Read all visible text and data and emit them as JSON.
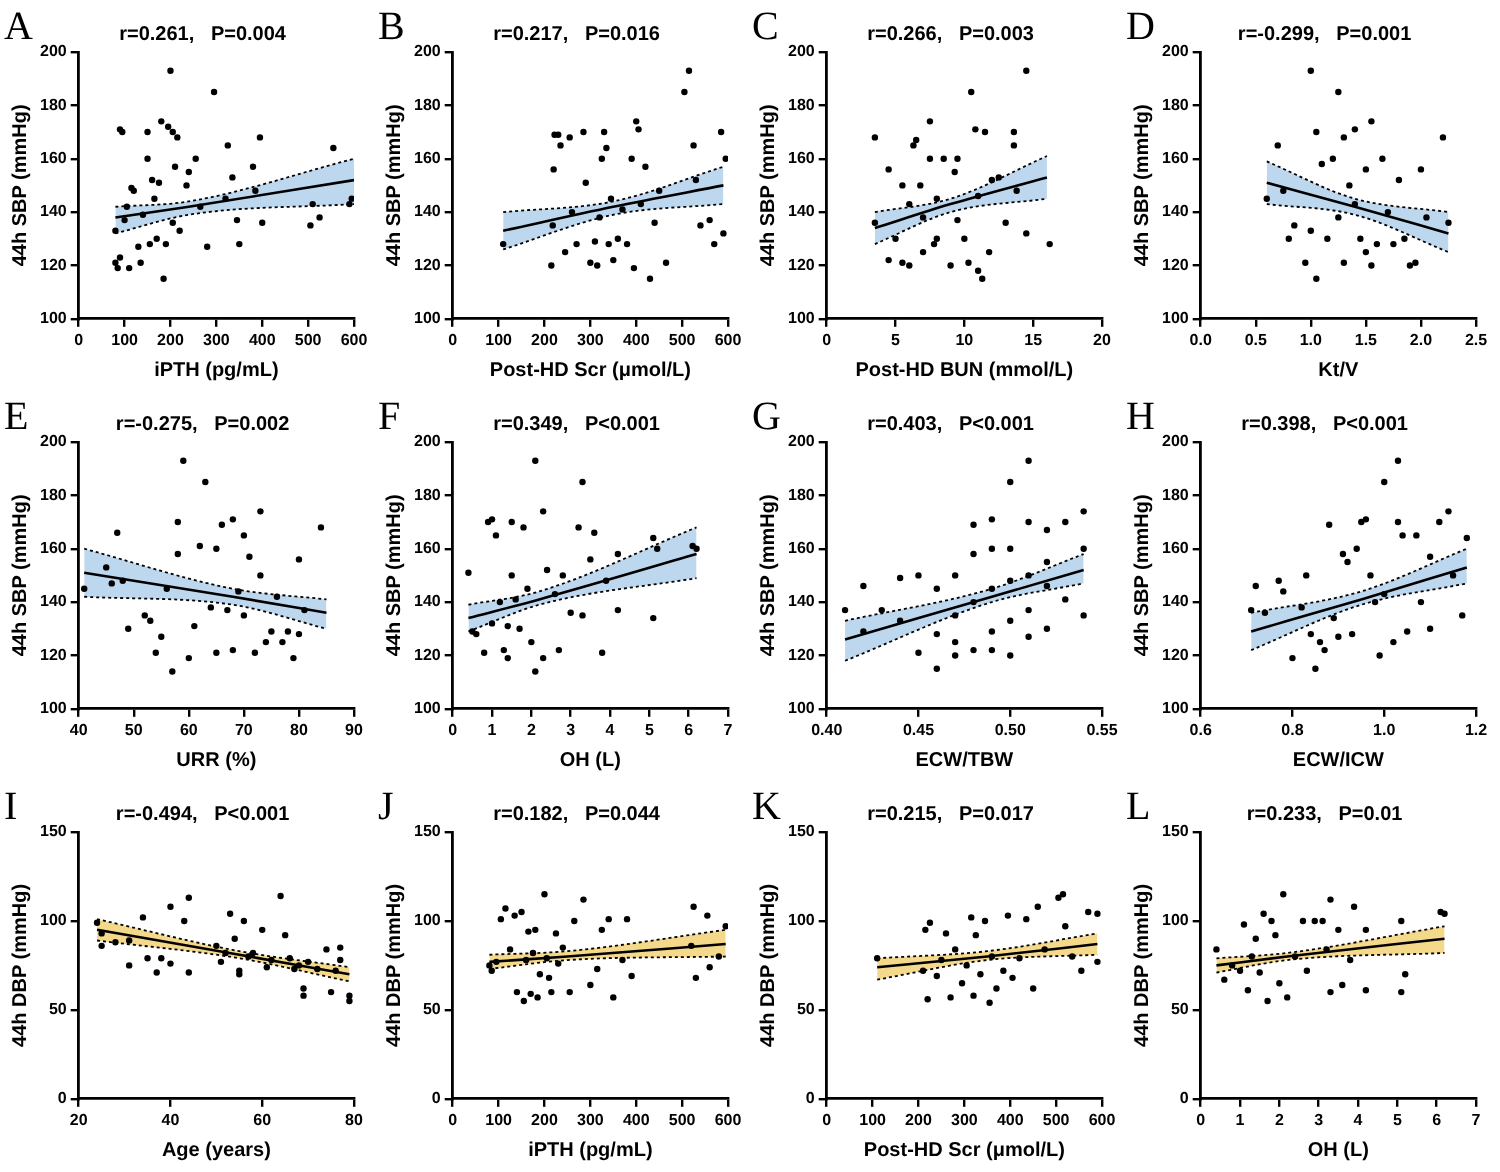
{
  "chart_data": [
    {
      "type": "scatter",
      "title": "A",
      "xlabel": "iPTH (pg/mL)",
      "ylabel": "44h SBP (mmHg)",
      "annotations": [
        "r=0.261,   P=0.004"
      ],
      "marker": "circle",
      "xlim": [
        0,
        600
      ],
      "xticks": [
        0,
        100,
        200,
        300,
        400,
        500,
        600
      ],
      "ylim": [
        100,
        200
      ],
      "yticks": [
        100,
        120,
        140,
        160,
        180,
        200
      ],
      "series": [
        {
          "type": "scatter",
          "color": "#000000",
          "x": [
            80,
            80,
            85,
            90,
            95,
            90,
            100,
            105,
            110,
            115,
            120,
            130,
            135,
            140,
            150,
            150,
            155,
            160,
            165,
            170,
            175,
            180,
            185,
            190,
            195,
            200,
            205,
            205,
            210,
            215,
            220,
            235,
            240,
            255,
            265,
            280,
            295,
            320,
            325,
            335,
            345,
            350,
            380,
            385,
            395,
            400,
            505,
            510,
            525,
            555,
            590,
            595
          ],
          "values": [
            133,
            121,
            119,
            171,
            170,
            123,
            137,
            142,
            119,
            149,
            148,
            127,
            121,
            139,
            160,
            170,
            128,
            152,
            145,
            130,
            151,
            174,
            115,
            128,
            172,
            193,
            170,
            136,
            157,
            168,
            133,
            150,
            155,
            160,
            142,
            127,
            185,
            145,
            165,
            153,
            137,
            128,
            157,
            148,
            168,
            136,
            135,
            143,
            138,
            164,
            143,
            145
          ]
        },
        {
          "type": "line",
          "color": "#000000",
          "colors": [
            "#bdd7ee",
            "#bdd7ee",
            "#bdd7ee"
          ],
          "x": [
            80,
            240,
            600
          ],
          "values": [
            138,
            142,
            152
          ],
          "lower": [
            132,
            139,
            143
          ],
          "upper": [
            142,
            144,
            160
          ],
          "marker": "none"
        },
        {
          "type": "line",
          "color": "#000000",
          "line_style": "dotted",
          "marker": "none",
          "x": [
            80,
            240,
            600
          ],
          "values": [
            132,
            139,
            143
          ]
        },
        {
          "type": "line",
          "color": "#000000",
          "line_style": "dotted",
          "marker": "none",
          "x": [
            80,
            240,
            600
          ],
          "values": [
            142,
            144,
            160
          ]
        }
      ]
    },
    {
      "type": "scatter",
      "title": "B",
      "xlabel": "Post-HD Scr (μmol/L)",
      "ylabel": "44h SBP (mmHg)",
      "annotations": [
        "r=0.217,   P=0.016"
      ],
      "marker": "circle",
      "xlim": [
        0,
        600
      ],
      "xticks": [
        0,
        100,
        200,
        300,
        400,
        500,
        600
      ],
      "ylim": [
        100,
        200
      ],
      "yticks": [
        100,
        120,
        140,
        160,
        180,
        200
      ],
      "series": [
        {
          "type": "scatter",
          "color": "#000000",
          "x": [
            110,
            215,
            218,
            220,
            222,
            230,
            235,
            245,
            255,
            260,
            270,
            285,
            290,
            300,
            310,
            315,
            320,
            325,
            330,
            335,
            340,
            345,
            350,
            360,
            370,
            380,
            390,
            395,
            400,
            405,
            410,
            420,
            430,
            440,
            450,
            465,
            505,
            515,
            525,
            530,
            540,
            560,
            570,
            585,
            590,
            595
          ],
          "values": [
            128,
            120,
            135,
            156,
            169,
            169,
            165,
            125,
            168,
            140,
            128,
            170,
            151,
            121,
            129,
            120,
            138,
            160,
            170,
            164,
            128,
            145,
            122,
            130,
            141,
            128,
            160,
            119,
            174,
            171,
            143,
            157,
            115,
            136,
            148,
            121,
            185,
            193,
            165,
            152,
            135,
            137,
            128,
            170,
            132,
            160
          ]
        },
        {
          "type": "line",
          "color": "#000000",
          "colors": [
            "#bdd7ee",
            "#bdd7ee",
            "#bdd7ee"
          ],
          "x": [
            110,
            350,
            590
          ],
          "values": [
            133,
            142,
            150
          ],
          "lower": [
            126,
            139,
            143
          ],
          "upper": [
            140,
            144,
            157
          ],
          "marker": "none"
        },
        {
          "type": "line",
          "color": "#000000",
          "line_style": "dotted",
          "marker": "none",
          "x": [
            110,
            350,
            590
          ],
          "values": [
            126,
            139,
            143
          ]
        },
        {
          "type": "line",
          "color": "#000000",
          "line_style": "dotted",
          "marker": "none",
          "x": [
            110,
            350,
            590
          ],
          "values": [
            140,
            144,
            157
          ]
        }
      ]
    },
    {
      "type": "scatter",
      "title": "C",
      "xlabel": "Post-HD BUN (mmol/L)",
      "ylabel": "44h SBP (mmHg)",
      "annotations": [
        "r=0.266,   P=0.003"
      ],
      "marker": "circle",
      "xlim": [
        0,
        20
      ],
      "xticks": [
        0,
        5,
        10,
        15,
        20
      ],
      "ylim": [
        100,
        200
      ],
      "yticks": [
        100,
        120,
        140,
        160,
        180,
        200
      ],
      "series": [
        {
          "type": "scatter",
          "color": "#000000",
          "x": [
            3.5,
            3.5,
            4.5,
            4.5,
            5,
            5.5,
            5.5,
            6,
            6,
            6.3,
            6.5,
            6.8,
            7,
            7,
            7.5,
            7.5,
            7.8,
            8,
            8,
            8.5,
            9,
            9.3,
            9.5,
            9.5,
            10,
            10.3,
            10.5,
            10.8,
            11,
            11,
            11.3,
            11.5,
            11.8,
            12,
            12.5,
            13,
            13.6,
            13.6,
            13.8,
            14.5,
            14.5,
            16.2
          ],
          "values": [
            168,
            136,
            156,
            122,
            130,
            121,
            150,
            143,
            120,
            165,
            167,
            150,
            138,
            125,
            174,
            160,
            128,
            145,
            130,
            160,
            120,
            155,
            160,
            137,
            130,
            121,
            185,
            171,
            118,
            146,
            115,
            170,
            125,
            152,
            153,
            136,
            170,
            165,
            148,
            193,
            132,
            128
          ]
        },
        {
          "type": "line",
          "color": "#000000",
          "colors": [
            "#bdd7ee",
            "#bdd7ee",
            "#bdd7ee"
          ],
          "x": [
            3.5,
            9,
            16
          ],
          "values": [
            134,
            143,
            153
          ],
          "lower": [
            128,
            140,
            145
          ],
          "upper": [
            140,
            145,
            161
          ],
          "marker": "none"
        },
        {
          "type": "line",
          "color": "#000000",
          "line_style": "dotted",
          "marker": "none",
          "x": [
            3.5,
            9,
            16
          ],
          "values": [
            128,
            140,
            145
          ]
        },
        {
          "type": "line",
          "color": "#000000",
          "line_style": "dotted",
          "marker": "none",
          "x": [
            3.5,
            9,
            16
          ],
          "values": [
            140,
            145,
            161
          ]
        }
      ]
    },
    {
      "type": "scatter",
      "title": "D",
      "xlabel": "Kt/V",
      "ylabel": "44h SBP (mmHg)",
      "annotations": [
        "r=-0.299,   P=0.001"
      ],
      "marker": "circle",
      "xlim": [
        0,
        2.5
      ],
      "xticks": [
        {
          "value": 0,
          "label": "0.0"
        },
        {
          "value": 0.5,
          "label": "0.5"
        },
        {
          "value": 1,
          "label": "1.0"
        },
        {
          "value": 1.5,
          "label": "1.5"
        },
        {
          "value": 2,
          "label": "2.0"
        },
        {
          "value": 2.5,
          "label": "2.5"
        }
      ],
      "ylim": [
        100,
        200
      ],
      "yticks": [
        100,
        120,
        140,
        160,
        180,
        200
      ],
      "series": [
        {
          "type": "scatter",
          "color": "#000000",
          "x": [
            0.6,
            0.7,
            0.75,
            0.8,
            0.85,
            0.95,
            1.0,
            1.0,
            1.05,
            1.05,
            1.1,
            1.15,
            1.2,
            1.25,
            1.25,
            1.3,
            1.3,
            1.35,
            1.4,
            1.4,
            1.45,
            1.5,
            1.5,
            1.55,
            1.55,
            1.6,
            1.65,
            1.7,
            1.75,
            1.8,
            1.85,
            1.9,
            1.95,
            2.0,
            2.05,
            2.2,
            2.25
          ],
          "values": [
            145,
            165,
            148,
            130,
            135,
            121,
            193,
            133,
            170,
            115,
            158,
            130,
            160,
            185,
            138,
            168,
            121,
            150,
            171,
            143,
            130,
            156,
            125,
            174,
            120,
            128,
            160,
            140,
            128,
            152,
            130,
            120,
            121,
            156,
            138,
            168,
            136
          ]
        },
        {
          "type": "line",
          "color": "#000000",
          "colors": [
            "#bdd7ee",
            "#bdd7ee",
            "#bdd7ee"
          ],
          "x": [
            0.6,
            1.4,
            2.25
          ],
          "values": [
            151,
            142,
            132
          ],
          "lower": [
            143,
            139,
            125
          ],
          "upper": [
            159,
            145,
            140
          ],
          "marker": "none"
        },
        {
          "type": "line",
          "color": "#000000",
          "line_style": "dotted",
          "marker": "none",
          "x": [
            0.6,
            1.4,
            2.25
          ],
          "values": [
            143,
            139,
            125
          ]
        },
        {
          "type": "line",
          "color": "#000000",
          "line_style": "dotted",
          "marker": "none",
          "x": [
            0.6,
            1.4,
            2.25
          ],
          "values": [
            159,
            145,
            140
          ]
        }
      ]
    },
    {
      "type": "scatter",
      "title": "E",
      "xlabel": "URR (%)",
      "ylabel": "44h SBP (mmHg)",
      "annotations": [
        "r=-0.275,   P=0.002"
      ],
      "marker": "circle",
      "xlim": [
        40,
        90
      ],
      "xticks": [
        40,
        50,
        60,
        70,
        80,
        90
      ],
      "ylim": [
        100,
        200
      ],
      "yticks": [
        100,
        120,
        140,
        160,
        180,
        200
      ],
      "series": [
        {
          "type": "scatter",
          "color": "#000000",
          "x": [
            41,
            45,
            46,
            47,
            48,
            49,
            52,
            53,
            54,
            55,
            56,
            57,
            58,
            58,
            59,
            60,
            61,
            62,
            63,
            64,
            65,
            65,
            66,
            67,
            68,
            68,
            69,
            70,
            70,
            71,
            72,
            73,
            73,
            74,
            75,
            76,
            77,
            78,
            79,
            80,
            80,
            81,
            84
          ],
          "values": [
            145,
            153,
            147,
            166,
            148,
            130,
            135,
            133,
            121,
            127,
            145,
            114,
            170,
            158,
            193,
            119,
            131,
            161,
            185,
            138,
            160,
            121,
            169,
            137,
            171,
            122,
            144,
            165,
            135,
            157,
            121,
            174,
            150,
            125,
            129,
            142,
            125,
            129,
            119,
            156,
            128,
            137,
            168
          ]
        },
        {
          "type": "line",
          "color": "#000000",
          "colors": [
            "#bdd7ee",
            "#bdd7ee",
            "#bdd7ee"
          ],
          "x": [
            41,
            68,
            85
          ],
          "values": [
            151,
            142,
            136
          ],
          "lower": [
            142,
            139,
            130
          ],
          "upper": [
            160,
            145,
            141
          ],
          "marker": "none"
        },
        {
          "type": "line",
          "color": "#000000",
          "line_style": "dotted",
          "marker": "none",
          "x": [
            41,
            68,
            85
          ],
          "values": [
            142,
            139,
            130
          ]
        },
        {
          "type": "line",
          "color": "#000000",
          "line_style": "dotted",
          "marker": "none",
          "x": [
            41,
            68,
            85
          ],
          "values": [
            160,
            145,
            141
          ]
        }
      ]
    },
    {
      "type": "scatter",
      "title": "F",
      "xlabel": "OH (L)",
      "ylabel": "44h SBP (mmHg)",
      "annotations": [
        "r=0.349,   P<0.001"
      ],
      "marker": "circle",
      "xlim": [
        0,
        7
      ],
      "xticks": [
        0,
        1,
        2,
        3,
        4,
        5,
        6,
        7
      ],
      "ylim": [
        100,
        200
      ],
      "yticks": [
        100,
        120,
        140,
        160,
        180,
        200
      ],
      "series": [
        {
          "type": "scatter",
          "color": "#000000",
          "x": [
            0.4,
            0.5,
            0.6,
            0.8,
            0.9,
            1.0,
            1.1,
            1.0,
            1.2,
            1.3,
            1.4,
            1.4,
            1.5,
            1.5,
            1.6,
            1.7,
            1.8,
            1.9,
            2.0,
            2.1,
            2.1,
            2.3,
            2.3,
            2.4,
            2.6,
            2.7,
            2.8,
            3.0,
            3.2,
            3.3,
            3.3,
            3.5,
            3.6,
            3.8,
            3.9,
            4.2,
            4.2,
            5.1,
            5.1,
            5.2,
            6.1,
            6.2
          ],
          "values": [
            151,
            129,
            128,
            121,
            170,
            171,
            165,
            132,
            140,
            122,
            119,
            131,
            170,
            150,
            141,
            130,
            168,
            145,
            125,
            193,
            114,
            174,
            119,
            152,
            143,
            122,
            150,
            136,
            168,
            185,
            135,
            156,
            166,
            121,
            148,
            137,
            158,
            134,
            164,
            160,
            161,
            160
          ]
        },
        {
          "type": "line",
          "color": "#000000",
          "colors": [
            "#bdd7ee",
            "#bdd7ee",
            "#bdd7ee"
          ],
          "x": [
            0.4,
            2.2,
            6.2
          ],
          "values": [
            134,
            141,
            158
          ],
          "lower": [
            129,
            139,
            149
          ],
          "upper": [
            139,
            144,
            168
          ],
          "marker": "none"
        },
        {
          "type": "line",
          "color": "#000000",
          "line_style": "dotted",
          "marker": "none",
          "x": [
            0.4,
            2.2,
            6.2
          ],
          "values": [
            129,
            139,
            149
          ]
        },
        {
          "type": "line",
          "color": "#000000",
          "line_style": "dotted",
          "marker": "none",
          "x": [
            0.4,
            2.2,
            6.2
          ],
          "values": [
            139,
            144,
            168
          ]
        }
      ]
    },
    {
      "type": "scatter",
      "title": "G",
      "xlabel": "ECW/TBW",
      "ylabel": "44h SBP (mmHg)",
      "annotations": [
        "r=0.403,   P<0.001"
      ],
      "marker": "circle",
      "xlim": [
        0.4,
        0.55
      ],
      "xticks": [
        {
          "value": 0.4,
          "label": "0.40"
        },
        {
          "value": 0.45,
          "label": "0.45"
        },
        {
          "value": 0.5,
          "label": "0.50"
        },
        {
          "value": 0.55,
          "label": "0.55"
        }
      ],
      "ylim": [
        100,
        200
      ],
      "yticks": [
        100,
        120,
        140,
        160,
        180,
        200
      ],
      "series": [
        {
          "type": "scatter",
          "color": "#000000",
          "x": [
            0.41,
            0.42,
            0.42,
            0.43,
            0.44,
            0.44,
            0.45,
            0.45,
            0.46,
            0.46,
            0.46,
            0.47,
            0.47,
            0.47,
            0.47,
            0.48,
            0.48,
            0.48,
            0.48,
            0.49,
            0.49,
            0.49,
            0.49,
            0.49,
            0.5,
            0.5,
            0.5,
            0.5,
            0.5,
            0.51,
            0.51,
            0.51,
            0.51,
            0.51,
            0.52,
            0.52,
            0.52,
            0.52,
            0.53,
            0.53,
            0.54,
            0.54,
            0.54
          ],
          "values": [
            137,
            146,
            129,
            137,
            149,
            133,
            150,
            121,
            145,
            128,
            115,
            150,
            135,
            120,
            125,
            169,
            158,
            140,
            122,
            171,
            160,
            145,
            129,
            122,
            185,
            160,
            148,
            133,
            120,
            193,
            170,
            150,
            137,
            127,
            167,
            155,
            146,
            130,
            170,
            141,
            174,
            160,
            135
          ]
        },
        {
          "type": "line",
          "color": "#000000",
          "colors": [
            "#bdd7ee",
            "#bdd7ee",
            "#bdd7ee"
          ],
          "x": [
            0.41,
            0.49,
            0.54
          ],
          "values": [
            126,
            142,
            152
          ],
          "lower": [
            118,
            140,
            147
          ],
          "upper": [
            133,
            145,
            158
          ],
          "marker": "none"
        },
        {
          "type": "line",
          "color": "#000000",
          "line_style": "dotted",
          "marker": "none",
          "x": [
            0.41,
            0.49,
            0.54
          ],
          "values": [
            118,
            140,
            147
          ]
        },
        {
          "type": "line",
          "color": "#000000",
          "line_style": "dotted",
          "marker": "none",
          "x": [
            0.41,
            0.49,
            0.54
          ],
          "values": [
            133,
            145,
            158
          ]
        }
      ]
    },
    {
      "type": "scatter",
      "title": "H",
      "xlabel": "ECW/ICW",
      "ylabel": "44h SBP (mmHg)",
      "annotations": [
        "r=0.398,   P<0.001"
      ],
      "marker": "circle",
      "xlim": [
        0.6,
        1.2
      ],
      "xticks": [
        {
          "value": 0.6,
          "label": "0.6"
        },
        {
          "value": 0.8,
          "label": "0.8"
        },
        {
          "value": 1,
          "label": "1.0"
        },
        {
          "value": 1.2,
          "label": "1.2"
        }
      ],
      "ylim": [
        100,
        200
      ],
      "yticks": [
        100,
        120,
        140,
        160,
        180,
        200
      ],
      "series": [
        {
          "type": "scatter",
          "color": "#000000",
          "x": [
            0.71,
            0.72,
            0.74,
            0.77,
            0.78,
            0.8,
            0.82,
            0.83,
            0.84,
            0.85,
            0.86,
            0.87,
            0.88,
            0.89,
            0.9,
            0.91,
            0.92,
            0.93,
            0.94,
            0.95,
            0.96,
            0.97,
            0.98,
            0.99,
            1.0,
            1.0,
            1.02,
            1.03,
            1.03,
            1.04,
            1.05,
            1.07,
            1.08,
            1.1,
            1.1,
            1.12,
            1.14,
            1.15,
            1.17,
            1.18
          ],
          "values": [
            137,
            146,
            136,
            148,
            144,
            119,
            138,
            150,
            128,
            115,
            125,
            122,
            169,
            134,
            127,
            158,
            155,
            128,
            160,
            170,
            171,
            150,
            140,
            120,
            185,
            143,
            125,
            193,
            170,
            165,
            129,
            165,
            140,
            130,
            157,
            170,
            174,
            150,
            135,
            164
          ]
        },
        {
          "type": "line",
          "color": "#000000",
          "colors": [
            "#bdd7ee",
            "#bdd7ee",
            "#bdd7ee"
          ],
          "x": [
            0.71,
            0.95,
            1.18
          ],
          "values": [
            129,
            141,
            153
          ],
          "lower": [
            122,
            139,
            147
          ],
          "upper": [
            136,
            144,
            160
          ],
          "marker": "none"
        },
        {
          "type": "line",
          "color": "#000000",
          "line_style": "dotted",
          "marker": "none",
          "x": [
            0.71,
            0.95,
            1.18
          ],
          "values": [
            122,
            139,
            147
          ]
        },
        {
          "type": "line",
          "color": "#000000",
          "line_style": "dotted",
          "marker": "none",
          "x": [
            0.71,
            0.95,
            1.18
          ],
          "values": [
            136,
            144,
            160
          ]
        }
      ]
    },
    {
      "type": "scatter",
      "title": "I",
      "xlabel": "Age (years)",
      "ylabel": "44h DBP (mmHg)",
      "annotations": [
        "r=-0.494,   P<0.001"
      ],
      "marker": "circle",
      "xlim": [
        20,
        80
      ],
      "xticks": [
        20,
        40,
        60,
        80
      ],
      "ylim": [
        0,
        150
      ],
      "yticks": [
        0,
        50,
        100,
        150
      ],
      "series": [
        {
          "type": "scatter",
          "color": "#000000",
          "x": [
            24,
            25,
            25,
            28,
            31,
            31,
            34,
            35,
            37,
            38,
            40,
            40,
            43,
            44,
            44,
            50,
            51,
            52,
            53,
            54,
            55,
            55,
            56,
            57,
            58,
            60,
            61,
            62,
            64,
            65,
            66,
            67,
            68,
            69,
            69,
            70,
            72,
            74,
            75,
            76,
            77,
            77,
            79,
            79
          ],
          "values": [
            99,
            93,
            86,
            88,
            75,
            89,
            102,
            79,
            71,
            79,
            108,
            76,
            100,
            113,
            71,
            86,
            77,
            82,
            104,
            90,
            72,
            70,
            100,
            80,
            82,
            95,
            74,
            78,
            114,
            92,
            79,
            73,
            75,
            58,
            62,
            77,
            73,
            84,
            60,
            72,
            85,
            78,
            55,
            58
          ]
        },
        {
          "type": "line",
          "color": "#000000",
          "colors": [
            "#f5d98b",
            "#f5d98b",
            "#f5d98b"
          ],
          "x": [
            24,
            55,
            79
          ],
          "values": [
            95,
            81,
            70
          ],
          "lower": [
            89,
            79,
            66
          ],
          "upper": [
            101,
            83,
            74
          ],
          "marker": "none"
        },
        {
          "type": "line",
          "color": "#000000",
          "line_style": "dotted",
          "marker": "none",
          "x": [
            24,
            55,
            79
          ],
          "values": [
            89,
            79,
            66
          ]
        },
        {
          "type": "line",
          "color": "#000000",
          "line_style": "dotted",
          "marker": "none",
          "x": [
            24,
            55,
            79
          ],
          "values": [
            101,
            83,
            74
          ]
        }
      ]
    },
    {
      "type": "scatter",
      "title": "J",
      "xlabel": "iPTH (pg/mL)",
      "ylabel": "44h DBP (mmHg)",
      "annotations": [
        "r=0.182,   P=0.044"
      ],
      "marker": "circle",
      "xlim": [
        0,
        600
      ],
      "xticks": [
        0,
        100,
        200,
        300,
        400,
        500,
        600
      ],
      "ylim": [
        0,
        150
      ],
      "yticks": [
        0,
        50,
        100,
        150
      ],
      "series": [
        {
          "type": "scatter",
          "color": "#000000",
          "x": [
            80,
            85,
            95,
            105,
            115,
            125,
            135,
            140,
            150,
            155,
            160,
            165,
            170,
            175,
            180,
            185,
            190,
            200,
            205,
            210,
            215,
            225,
            230,
            240,
            255,
            265,
            285,
            300,
            315,
            325,
            340,
            350,
            370,
            380,
            390,
            520,
            525,
            530,
            555,
            560,
            580,
            595
          ],
          "values": [
            75,
            72,
            77,
            101,
            107,
            84,
            103,
            60,
            105,
            55,
            78,
            94,
            59,
            82,
            95,
            57,
            70,
            115,
            79,
            68,
            60,
            93,
            76,
            85,
            60,
            100,
            112,
            64,
            73,
            95,
            101,
            57,
            78,
            101,
            69,
            86,
            108,
            68,
            103,
            74,
            80,
            97
          ]
        },
        {
          "type": "line",
          "color": "#000000",
          "colors": [
            "#f5d98b",
            "#f5d98b",
            "#f5d98b"
          ],
          "x": [
            80,
            250,
            595
          ],
          "values": [
            77,
            80,
            87
          ],
          "lower": [
            73,
            78,
            80
          ],
          "upper": [
            81,
            83,
            95
          ],
          "marker": "none"
        },
        {
          "type": "line",
          "color": "#000000",
          "line_style": "dotted",
          "marker": "none",
          "x": [
            80,
            250,
            595
          ],
          "values": [
            73,
            78,
            80
          ]
        },
        {
          "type": "line",
          "color": "#000000",
          "line_style": "dotted",
          "marker": "none",
          "x": [
            80,
            250,
            595
          ],
          "values": [
            81,
            83,
            95
          ]
        }
      ]
    },
    {
      "type": "scatter",
      "title": "K",
      "xlabel": "Post-HD Scr (μmol/L)",
      "ylabel": "44h DBP (mmHg)",
      "annotations": [
        "r=0.215,   P=0.017"
      ],
      "marker": "circle",
      "xlim": [
        0,
        600
      ],
      "xticks": [
        0,
        100,
        200,
        300,
        400,
        500,
        600
      ],
      "ylim": [
        0,
        150
      ],
      "yticks": [
        0,
        50,
        100,
        150
      ],
      "series": [
        {
          "type": "scatter",
          "color": "#000000",
          "x": [
            110,
            210,
            215,
            220,
            225,
            240,
            250,
            260,
            270,
            280,
            295,
            305,
            315,
            320,
            325,
            335,
            345,
            355,
            360,
            370,
            385,
            395,
            405,
            420,
            435,
            450,
            460,
            475,
            505,
            515,
            520,
            535,
            555,
            570,
            590,
            590
          ],
          "values": [
            79,
            72,
            95,
            56,
            99,
            69,
            78,
            93,
            57,
            84,
            65,
            75,
            102,
            58,
            92,
            70,
            100,
            54,
            80,
            62,
            72,
            103,
            68,
            79,
            101,
            62,
            108,
            84,
            113,
            115,
            97,
            80,
            72,
            105,
            104,
            77
          ]
        },
        {
          "type": "line",
          "color": "#000000",
          "colors": [
            "#f5d98b",
            "#f5d98b",
            "#f5d98b"
          ],
          "x": [
            110,
            350,
            590
          ],
          "values": [
            74,
            80,
            87
          ],
          "lower": [
            67,
            78,
            81
          ],
          "upper": [
            79,
            83,
            93
          ],
          "marker": "none"
        },
        {
          "type": "line",
          "color": "#000000",
          "line_style": "dotted",
          "marker": "none",
          "x": [
            110,
            350,
            590
          ],
          "values": [
            67,
            78,
            81
          ]
        },
        {
          "type": "line",
          "color": "#000000",
          "line_style": "dotted",
          "marker": "none",
          "x": [
            110,
            350,
            590
          ],
          "values": [
            79,
            83,
            93
          ]
        }
      ]
    },
    {
      "type": "scatter",
      "title": "L",
      "xlabel": "OH (L)",
      "ylabel": "44h DBP (mmHg)",
      "annotations": [
        "r=0.233,   P=0.01"
      ],
      "marker": "circle",
      "xlim": [
        0,
        7
      ],
      "xticks": [
        0,
        1,
        2,
        3,
        4,
        5,
        6,
        7
      ],
      "ylim": [
        0,
        150
      ],
      "yticks": [
        0,
        50,
        100,
        150
      ],
      "series": [
        {
          "type": "scatter",
          "color": "#000000",
          "x": [
            0.4,
            0.6,
            0.8,
            1.0,
            1.1,
            1.2,
            1.3,
            1.4,
            1.5,
            1.6,
            1.7,
            1.8,
            1.9,
            2.0,
            2.1,
            2.2,
            2.4,
            2.6,
            2.7,
            2.9,
            3.1,
            3.2,
            3.3,
            3.3,
            3.5,
            3.6,
            3.8,
            3.9,
            4.2,
            4.2,
            5.1,
            5.1,
            5.2,
            6.1,
            6.2
          ],
          "values": [
            84,
            67,
            75,
            72,
            98,
            61,
            80,
            90,
            71,
            104,
            55,
            100,
            92,
            65,
            115,
            57,
            80,
            100,
            72,
            100,
            100,
            84,
            112,
            60,
            95,
            64,
            78,
            108,
            61,
            95,
            100,
            60,
            70,
            105,
            104
          ]
        },
        {
          "type": "line",
          "color": "#000000",
          "colors": [
            "#f5d98b",
            "#f5d98b",
            "#f5d98b"
          ],
          "x": [
            0.4,
            2.2,
            6.2
          ],
          "values": [
            75,
            80,
            90
          ],
          "lower": [
            71,
            78,
            82
          ],
          "upper": [
            79,
            82,
            97
          ],
          "marker": "none"
        },
        {
          "type": "line",
          "color": "#000000",
          "line_style": "dotted",
          "marker": "none",
          "x": [
            0.4,
            2.2,
            6.2
          ],
          "values": [
            71,
            78,
            82
          ]
        },
        {
          "type": "line",
          "color": "#000000",
          "line_style": "dotted",
          "marker": "none",
          "x": [
            0.4,
            2.2,
            6.2
          ],
          "values": [
            79,
            82,
            97
          ]
        }
      ]
    }
  ]
}
